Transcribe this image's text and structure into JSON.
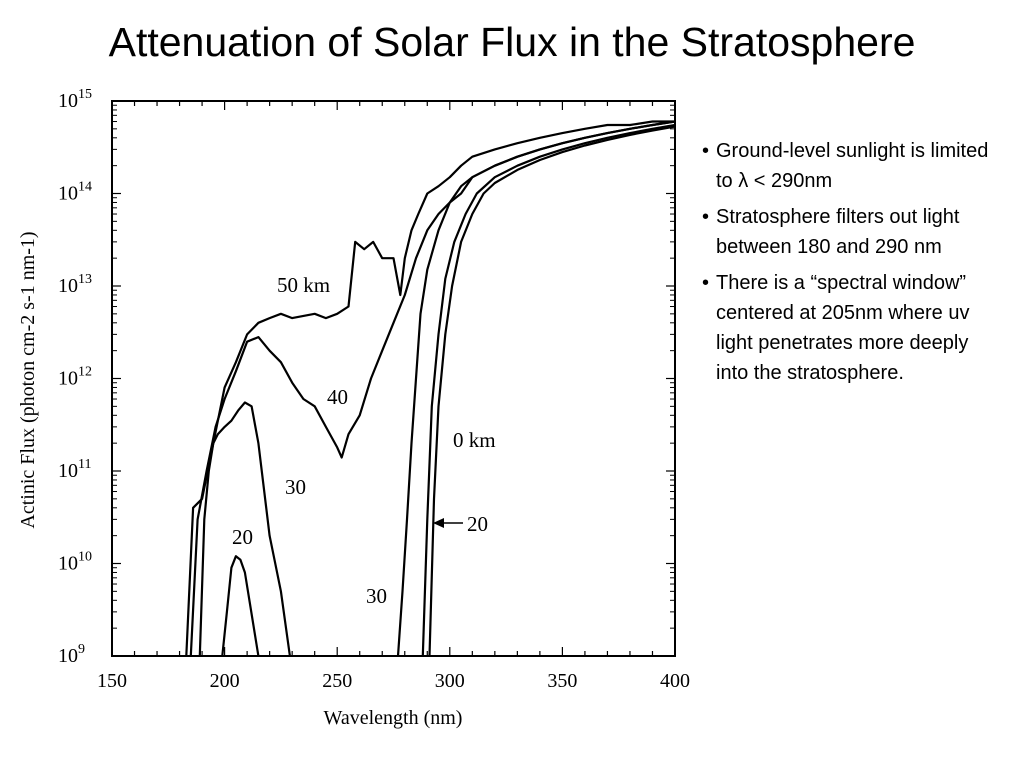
{
  "slide": {
    "title": "Attenuation of Solar Flux in the Stratosphere",
    "bullets": [
      "Ground-level sunlight is limited to λ < 290nm",
      "Stratosphere filters out light between 180 and 290 nm",
      "There is a “spectral window” centered at 205nm where uv light penetrates more deeply into the stratosphere."
    ]
  },
  "chart_data": {
    "type": "line",
    "title": "",
    "xlabel": "Wavelength (nm)",
    "ylabel": "Actinic Flux (photon cm-2 s-1 nm-1)",
    "x_scale": "linear",
    "y_scale": "log",
    "xlim": [
      150,
      400
    ],
    "ylim": [
      1000000000.0,
      1000000000000000.0
    ],
    "x_ticks": [
      "150",
      "200",
      "250",
      "300",
      "350",
      "400"
    ],
    "y_ticks": [
      "10^9",
      "10^10",
      "10^11",
      "10^12",
      "10^13",
      "10^14",
      "10^15"
    ],
    "grid": false,
    "series": [
      {
        "name": "50 km",
        "x": [
          183,
          186,
          190,
          195,
          200,
          205,
          210,
          215,
          220,
          225,
          230,
          240,
          245,
          250,
          255,
          258,
          262,
          266,
          270,
          275,
          278,
          280,
          283,
          286,
          290,
          295,
          300,
          305,
          310,
          320,
          330,
          340,
          350,
          360,
          370,
          380,
          390,
          400
        ],
        "y": [
          1000000000.0,
          40000000000.0,
          50000000000.0,
          200000000000.0,
          800000000000.0,
          1500000000000.0,
          3000000000000.0,
          4000000000000.0,
          4500000000000.0,
          5000000000000.0,
          4500000000000.0,
          5000000000000.0,
          4500000000000.0,
          5000000000000.0,
          6000000000000.0,
          30000000000000.0,
          25000000000000.0,
          30000000000000.0,
          20000000000000.0,
          20000000000000.0,
          8000000000000.0,
          20000000000000.0,
          40000000000000.0,
          60000000000000.0,
          100000000000000.0,
          120000000000000.0,
          150000000000000.0,
          200000000000000.0,
          250000000000000.0,
          300000000000000.0,
          350000000000000.0,
          400000000000000.0,
          450000000000000.0,
          500000000000000.0,
          550000000000000.0,
          550000000000000.0,
          600000000000000.0,
          600000000000000.0
        ]
      },
      {
        "name": "40",
        "x": [
          185,
          188,
          192,
          196,
          200,
          205,
          210,
          215,
          220,
          225,
          230,
          235,
          240,
          245,
          250,
          252,
          255,
          260,
          265,
          270,
          275,
          280,
          285,
          290,
          295,
          300,
          305,
          310,
          320,
          330,
          340,
          350,
          360,
          370,
          380,
          390,
          400
        ],
        "y": [
          1000000000.0,
          30000000000.0,
          100000000000.0,
          300000000000.0,
          600000000000.0,
          1200000000000.0,
          2500000000000.0,
          2800000000000.0,
          2000000000000.0,
          1500000000000.0,
          900000000000.0,
          600000000000.0,
          500000000000.0,
          300000000000.0,
          180000000000.0,
          140000000000.0,
          250000000000.0,
          400000000000.0,
          1000000000000.0,
          2000000000000.0,
          4000000000000.0,
          8000000000000.0,
          20000000000000.0,
          40000000000000.0,
          60000000000000.0,
          80000000000000.0,
          100000000000000.0,
          150000000000000.0,
          200000000000000.0,
          250000000000000.0,
          300000000000000.0,
          350000000000000.0,
          400000000000000.0,
          450000000000000.0,
          500000000000000.0,
          550000000000000.0,
          600000000000000.0
        ]
      },
      {
        "name": "30",
        "x": [
          189,
          191,
          193,
          195,
          197,
          200,
          203,
          206,
          209,
          212,
          215,
          220,
          225,
          229
        ],
        "y": [
          1000000000.0,
          30000000000.0,
          100000000000.0,
          200000000000.0,
          250000000000.0,
          300000000000.0,
          350000000000.0,
          450000000000.0,
          550000000000.0,
          500000000000.0,
          200000000000.0,
          20000000000.0,
          5000000000.0,
          1000000000.0
        ]
      },
      {
        "name": "20",
        "x": [
          199,
          201,
          203,
          205,
          207,
          209,
          211,
          213,
          215
        ],
        "y": [
          1000000000.0,
          3000000000.0,
          9000000000.0,
          12000000000.0,
          11000000000.0,
          8000000000.0,
          4000000000.0,
          2000000000.0,
          1000000000.0
        ]
      },
      {
        "name": "30",
        "x": [
          277,
          279,
          281,
          283,
          285,
          287,
          290,
          295,
          300,
          305,
          310,
          320,
          330,
          340,
          350,
          360,
          370,
          380,
          390,
          400
        ],
        "y": [
          1000000000.0,
          5000000000.0,
          30000000000.0,
          200000000000.0,
          1000000000000.0,
          5000000000000.0,
          15000000000000.0,
          40000000000000.0,
          80000000000000.0,
          120000000000000.0,
          150000000000000.0,
          200000000000000.0,
          250000000000000.0,
          300000000000000.0,
          350000000000000.0,
          400000000000000.0,
          450000000000000.0,
          500000000000000.0,
          550000000000000.0,
          600000000000000.0
        ]
      },
      {
        "name": "0 km",
        "x": [
          288,
          290,
          292,
          295,
          298,
          302,
          307,
          312,
          320,
          330,
          340,
          350,
          360,
          370,
          380,
          390,
          400
        ],
        "y": [
          1000000000.0,
          30000000000.0,
          500000000000.0,
          3000000000000.0,
          12000000000000.0,
          30000000000000.0,
          60000000000000.0,
          100000000000000.0,
          150000000000000.0,
          200000000000000.0,
          250000000000000.0,
          300000000000000.0,
          350000000000000.0,
          400000000000000.0,
          450000000000000.0,
          500000000000000.0,
          550000000000000.0
        ]
      },
      {
        "name": "20",
        "x": [
          291,
          293,
          295,
          298,
          301,
          305,
          310,
          315,
          320,
          330,
          340,
          350,
          360,
          370,
          380,
          390,
          400
        ],
        "y": [
          1000000000.0,
          50000000000.0,
          500000000000.0,
          3000000000000.0,
          10000000000000.0,
          30000000000000.0,
          60000000000000.0,
          100000000000000.0,
          130000000000000.0,
          180000000000000.0,
          230000000000000.0,
          280000000000000.0,
          330000000000000.0,
          380000000000000.0,
          430000000000000.0,
          480000000000000.0,
          530000000000000.0
        ]
      }
    ],
    "annotations": [
      "50 km",
      "40",
      "30",
      "20",
      "0 km",
      "30",
      "20"
    ]
  }
}
